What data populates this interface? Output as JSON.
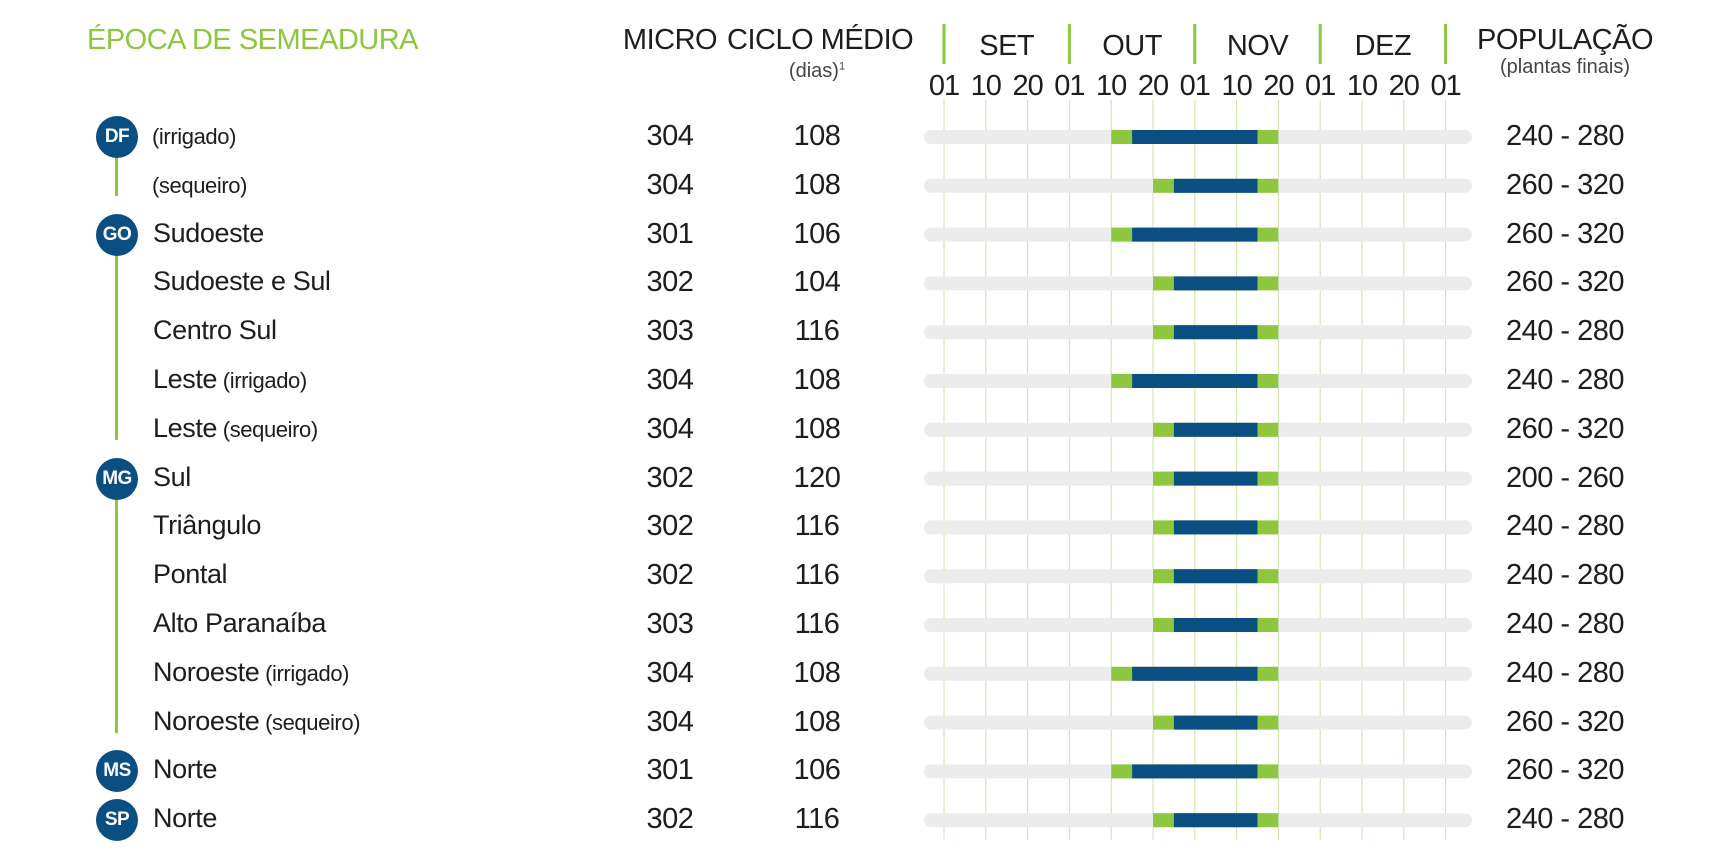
{
  "title": "ÉPOCA DE SEMEADURA",
  "headers": {
    "micro": "MICRO",
    "ciclo": "CICLO MÉDIO",
    "ciclo_sub": "(dias)",
    "ciclo_note": "1",
    "populacao": "POPULAÇÃO",
    "populacao_sub": "(plantas finais)"
  },
  "colors": {
    "accent_green": "#8dc63f",
    "bar_blue": "#0b4f82",
    "track_grey": "#ececec",
    "grid_green": "#c9e3a5"
  },
  "chart_data": {
    "type": "gantt",
    "months": [
      "SET",
      "OUT",
      "NOV",
      "DEZ"
    ],
    "ticks": [
      "01",
      "10",
      "20",
      "01",
      "10",
      "20",
      "01",
      "10",
      "20",
      "01",
      "10",
      "20",
      "01"
    ],
    "legend": null,
    "rows": [
      {
        "state": "DF",
        "region": "",
        "note": "(irrigado)",
        "micro": "304",
        "ciclo": "108",
        "populacao": "240 - 280",
        "green": [
          "10/out",
          "20/nov"
        ],
        "blue": [
          "15/out",
          "15/nov"
        ]
      },
      {
        "state": "",
        "region": "",
        "note": "(sequeiro)",
        "micro": "304",
        "ciclo": "108",
        "populacao": "260 - 320",
        "green": [
          "20/out",
          "20/nov"
        ],
        "blue": [
          "25/out",
          "15/nov"
        ]
      },
      {
        "state": "GO",
        "region": "Sudoeste",
        "note": "",
        "micro": "301",
        "ciclo": "106",
        "populacao": "260 - 320",
        "green": [
          "10/out",
          "20/nov"
        ],
        "blue": [
          "15/out",
          "15/nov"
        ]
      },
      {
        "state": "",
        "region": "Sudoeste e Sul",
        "note": "",
        "micro": "302",
        "ciclo": "104",
        "populacao": "260 - 320",
        "green": [
          "20/out",
          "20/nov"
        ],
        "blue": [
          "25/out",
          "15/nov"
        ]
      },
      {
        "state": "",
        "region": "Centro Sul",
        "note": "",
        "micro": "303",
        "ciclo": "116",
        "populacao": "240 - 280",
        "green": [
          "20/out",
          "20/nov"
        ],
        "blue": [
          "25/out",
          "15/nov"
        ]
      },
      {
        "state": "",
        "region": "Leste",
        "note": "(irrigado)",
        "micro": "304",
        "ciclo": "108",
        "populacao": "240 - 280",
        "green": [
          "10/out",
          "20/nov"
        ],
        "blue": [
          "15/out",
          "15/nov"
        ]
      },
      {
        "state": "",
        "region": "Leste",
        "note": "(sequeiro)",
        "micro": "304",
        "ciclo": "108",
        "populacao": "260 - 320",
        "green": [
          "20/out",
          "20/nov"
        ],
        "blue": [
          "25/out",
          "15/nov"
        ]
      },
      {
        "state": "MG",
        "region": "Sul",
        "note": "",
        "micro": "302",
        "ciclo": "120",
        "populacao": "200 - 260",
        "green": [
          "20/out",
          "20/nov"
        ],
        "blue": [
          "25/out",
          "15/nov"
        ]
      },
      {
        "state": "",
        "region": "Triângulo",
        "note": "",
        "micro": "302",
        "ciclo": "116",
        "populacao": "240 - 280",
        "green": [
          "20/out",
          "20/nov"
        ],
        "blue": [
          "25/out",
          "15/nov"
        ]
      },
      {
        "state": "",
        "region": "Pontal",
        "note": "",
        "micro": "302",
        "ciclo": "116",
        "populacao": "240 - 280",
        "green": [
          "20/out",
          "20/nov"
        ],
        "blue": [
          "25/out",
          "15/nov"
        ]
      },
      {
        "state": "",
        "region": "Alto Paranaíba",
        "note": "",
        "micro": "303",
        "ciclo": "116",
        "populacao": "240 - 280",
        "green": [
          "20/out",
          "20/nov"
        ],
        "blue": [
          "25/out",
          "15/nov"
        ]
      },
      {
        "state": "",
        "region": "Noroeste",
        "note": "(irrigado)",
        "micro": "304",
        "ciclo": "108",
        "populacao": "240 - 280",
        "green": [
          "10/out",
          "20/nov"
        ],
        "blue": [
          "15/out",
          "15/nov"
        ]
      },
      {
        "state": "",
        "region": "Noroeste",
        "note": "(sequeiro)",
        "micro": "304",
        "ciclo": "108",
        "populacao": "260 - 320",
        "green": [
          "20/out",
          "20/nov"
        ],
        "blue": [
          "25/out",
          "15/nov"
        ]
      },
      {
        "state": "MS",
        "region": "Norte",
        "note": "",
        "micro": "301",
        "ciclo": "106",
        "populacao": "260 - 320",
        "green": [
          "10/out",
          "20/nov"
        ],
        "blue": [
          "15/out",
          "15/nov"
        ]
      },
      {
        "state": "SP",
        "region": "Norte",
        "note": "",
        "micro": "302",
        "ciclo": "116",
        "populacao": "240 - 280",
        "green": [
          "20/out",
          "20/nov"
        ],
        "blue": [
          "25/out",
          "15/nov"
        ]
      }
    ]
  }
}
